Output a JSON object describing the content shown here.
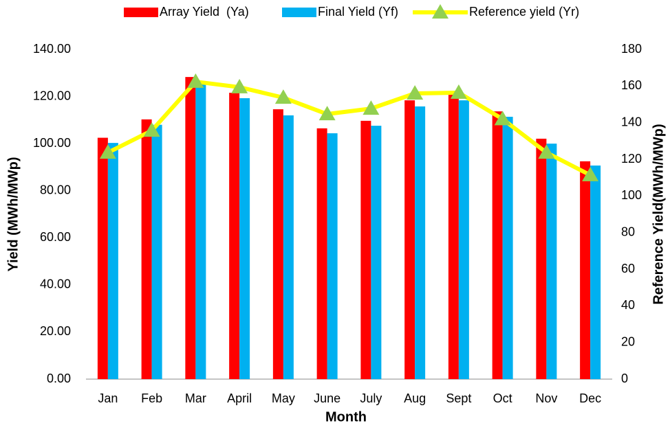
{
  "chart_data": {
    "type": "bar_line",
    "x_label": "Month",
    "y_label": "Yield (MWh/MWp)",
    "y2_label": "Reference Yield(MWh/MWp)",
    "categories": [
      "Jan",
      "Feb",
      "Mar",
      "April",
      "May",
      "June",
      "July",
      "Aug",
      "Sept",
      "Oct",
      "Nov",
      "Dec"
    ],
    "series": [
      {
        "name": "Array Yield  (Ya)",
        "type": "bar",
        "color": "#ff0000",
        "values": [
          102.5,
          110.3,
          128.3,
          121.6,
          114.6,
          106.5,
          109.7,
          118.4,
          121,
          113.7,
          102.1,
          92.5
        ]
      },
      {
        "name": "Final Yield (Yf)",
        "type": "bar",
        "color": "#00b0f0",
        "values": [
          100.3,
          108,
          126,
          119.3,
          112,
          104.4,
          107.6,
          115.8,
          118.4,
          111.4,
          100,
          90.7
        ]
      },
      {
        "name": "Reference yield (Yr)",
        "type": "line",
        "axis": "y2",
        "color": "#ffff00",
        "marker_color": "#92d050",
        "values": [
          123.7,
          135.7,
          162.4,
          159.4,
          153.7,
          144.7,
          147.7,
          156,
          156.4,
          142,
          123.7,
          111.4
        ]
      }
    ],
    "ylim": [
      0,
      140
    ],
    "yticks": [
      {
        "value": 0,
        "label": "0.00"
      },
      {
        "value": 20,
        "label": "20.00"
      },
      {
        "value": 40,
        "label": "40.00"
      },
      {
        "value": 60,
        "label": "60.00"
      },
      {
        "value": 80,
        "label": "80.00"
      },
      {
        "value": 100,
        "label": "100.00"
      },
      {
        "value": 120,
        "label": "120.00"
      },
      {
        "value": 140,
        "label": "140.00"
      }
    ],
    "y2lim": [
      0,
      180
    ],
    "y2ticks": [
      0,
      20,
      40,
      60,
      80,
      100,
      120,
      140,
      160,
      180
    ],
    "grid": false
  }
}
